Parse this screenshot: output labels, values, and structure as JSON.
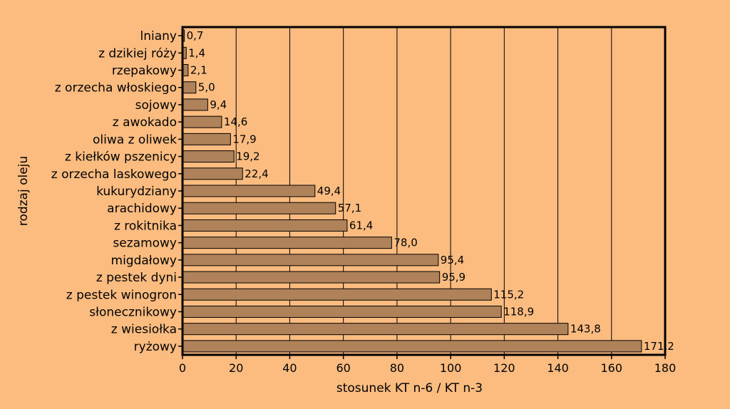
{
  "chart_data": {
    "type": "bar",
    "orientation": "horizontal",
    "categories": [
      "lniany",
      "z dzikiej róży",
      "rzepakowy",
      "z orzecha włoskiego",
      "sojowy",
      "z awokado",
      "oliwa z oliwek",
      "z kiełków pszenicy",
      "z orzecha laskowego",
      "kukurydziany",
      "arachidowy",
      "z rokitnika",
      "sezamowy",
      "migdałowy",
      "z pestek dyni",
      "z pestek winogron",
      "słonecznikowy",
      "z wiesiołka",
      "ryżowy"
    ],
    "values": [
      0.7,
      1.4,
      2.1,
      5.0,
      9.4,
      14.6,
      17.9,
      19.2,
      22.4,
      49.4,
      57.1,
      61.4,
      78.0,
      95.4,
      95.9,
      115.2,
      118.9,
      143.8,
      171.2
    ],
    "value_labels": [
      "0,7",
      "1,4",
      "2,1",
      "5,0",
      "9,4",
      "14,6",
      "17,9",
      "19,2",
      "22,4",
      "49,4",
      "57,1",
      "61,4",
      "78,0",
      "95,4",
      "95,9",
      "115,2",
      "118,9",
      "143,8",
      "171,2"
    ],
    "xlabel": "stosunek KT n-6 / KT n-3",
    "ylabel": "rodzaj oleju",
    "xlim": [
      0,
      180
    ],
    "xticks": [
      0,
      20,
      40,
      60,
      80,
      100,
      120,
      140,
      160,
      180
    ],
    "grid": "vertical",
    "colors": {
      "background": "#fcbc80",
      "bar": "#b0825a",
      "bar_stroke": "#000000"
    }
  }
}
